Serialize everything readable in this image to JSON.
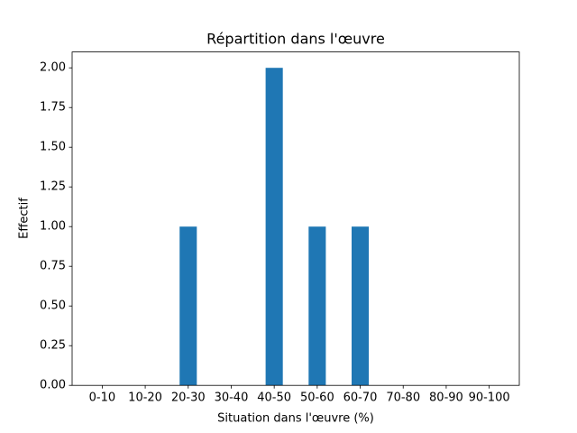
{
  "chart_data": {
    "type": "bar",
    "title": "Répartition dans l'œuvre",
    "x_label": "Situation dans l'œuvre (%)",
    "y_label": "Effectif",
    "categories": [
      "0-10",
      "10-20",
      "20-30",
      "30-40",
      "40-50",
      "50-60",
      "60-70",
      "70-80",
      "80-90",
      "90-100"
    ],
    "values": [
      0,
      0,
      1,
      0,
      2,
      1,
      1,
      0,
      0,
      0
    ],
    "color": "#1f77b4",
    "ylim": [
      0,
      2.1
    ],
    "yticks": [
      {
        "value": 0,
        "label": "0.00"
      },
      {
        "value": 0.25,
        "label": "0.25"
      },
      {
        "value": 0.5,
        "label": "0.50"
      },
      {
        "value": 0.75,
        "label": "0.75"
      },
      {
        "value": 1,
        "label": "1.00"
      },
      {
        "value": 1.25,
        "label": "1.25"
      },
      {
        "value": 1.5,
        "label": "1.50"
      },
      {
        "value": 1.75,
        "label": "1.75"
      },
      {
        "value": 2,
        "label": "2.00"
      }
    ],
    "grid": false
  }
}
